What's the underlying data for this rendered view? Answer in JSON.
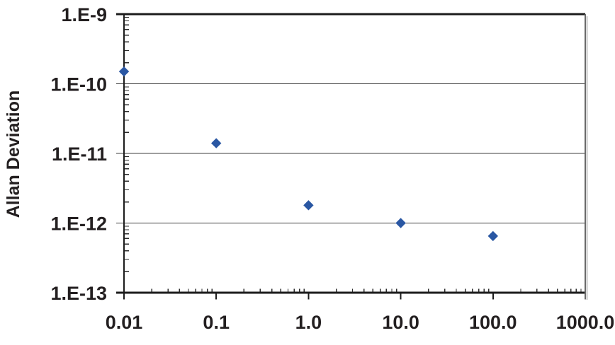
{
  "chart_data": {
    "type": "scatter",
    "title": "",
    "xlabel": "",
    "ylabel": "Allan Deviation",
    "x_scale": "log",
    "y_scale": "log",
    "xlim": [
      0.01,
      1000
    ],
    "ylim": [
      1e-13,
      1e-09
    ],
    "x_tick_labels": [
      "0.01",
      "0.1",
      "1.0",
      "10.0",
      "100.0",
      "1000.0"
    ],
    "y_tick_labels": [
      "1.E-9",
      "1.E-10",
      "1.E-11",
      "1.E-12",
      "1.E-13"
    ],
    "minor_ticks": true,
    "grid": "horizontal-major",
    "legend_position": "none",
    "series": [
      {
        "name": "Allan deviation",
        "marker": "diamond",
        "marker_size_px": 14,
        "color": "#2a57a3",
        "points": [
          {
            "x": 0.01,
            "y": 1.5e-10
          },
          {
            "x": 0.1,
            "y": 1.4e-11
          },
          {
            "x": 1.0,
            "y": 1.8e-12
          },
          {
            "x": 10.0,
            "y": 1e-12
          },
          {
            "x": 100.0,
            "y": 6.5e-13
          }
        ]
      }
    ],
    "colors": {
      "text": "#231f20",
      "axis": "#1c1c1c",
      "gridline": "#3d3d3d",
      "minor_tick": "#2b2b2b",
      "right_border": "#6a6a6a",
      "right_border_shadow": "#c6c6c6",
      "background": "#ffffff"
    }
  }
}
